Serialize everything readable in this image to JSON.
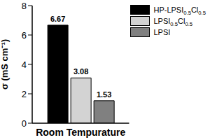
{
  "chart_data": {
    "type": "bar",
    "categories": [
      "Room Tempurature"
    ],
    "series": [
      {
        "name": "HP-LPSI0.5Cl0.5",
        "color": "#000000",
        "values": [
          6.67
        ]
      },
      {
        "name": "LPSI0.5Cl0.5",
        "color": "#d3d3d3",
        "values": [
          3.08
        ]
      },
      {
        "name": "LPSI",
        "color": "#808080",
        "values": [
          1.53
        ]
      }
    ],
    "ylabel": "σ (mS cm⁻¹)",
    "ylim": [
      0,
      8
    ],
    "yticks": [
      0,
      2,
      4,
      6,
      8
    ],
    "grid": false,
    "legend": "upper right",
    "data_labels": true
  }
}
